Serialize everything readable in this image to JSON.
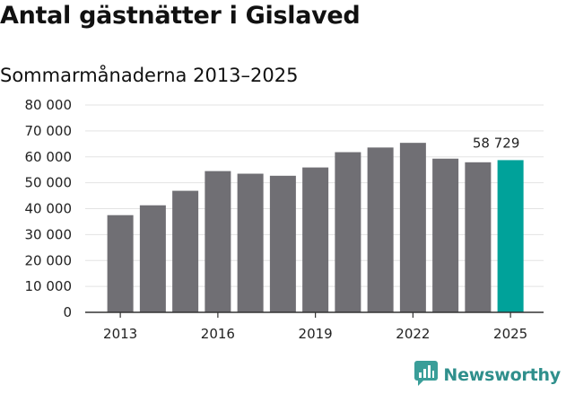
{
  "title": "Antal gästnätter i Gislaved",
  "subtitle": "Sommarmånaderna 2013–2025",
  "logo_text": "Newsworthy",
  "colors": {
    "bar": "#706f74",
    "highlight": "#00a29a",
    "grid": "#e3e3e3",
    "axis": "#333333",
    "logo": "#2f8f8c"
  },
  "chart_data": {
    "type": "bar",
    "title": "Antal gästnätter i Gislaved",
    "subtitle": "Sommarmånaderna 2013–2025",
    "categories": [
      "2013",
      "2014",
      "2015",
      "2016",
      "2017",
      "2018",
      "2019",
      "2020",
      "2021",
      "2022",
      "2023",
      "2024",
      "2025"
    ],
    "values": [
      37500,
      41300,
      46900,
      54500,
      53500,
      52700,
      55900,
      61800,
      63600,
      65400,
      59300,
      57900,
      58729
    ],
    "x_tick_labels": [
      "2013",
      "2016",
      "2019",
      "2022",
      "2025"
    ],
    "y_ticks": [
      0,
      10000,
      20000,
      30000,
      40000,
      50000,
      60000,
      70000,
      80000
    ],
    "y_tick_labels": [
      "0",
      "10 000",
      "20 000",
      "30 000",
      "40 000",
      "50 000",
      "60 000",
      "70 000",
      "80 000"
    ],
    "ylim": [
      0,
      80000
    ],
    "highlight_category": "2025",
    "annotation": "58 729",
    "grid": true,
    "legend": "none"
  }
}
